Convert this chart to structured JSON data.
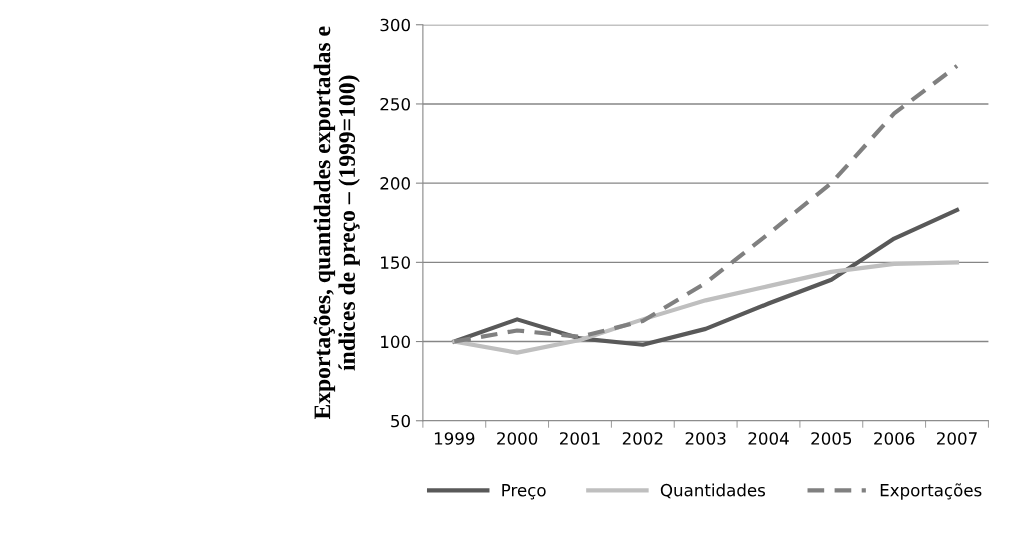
{
  "chart_data": {
    "type": "line",
    "ylabel": "Exportações, quantidades exportadas e\níndices de preço – (1999=100)",
    "categories": [
      "1999",
      "2000",
      "2001",
      "2002",
      "2003",
      "2004",
      "2005",
      "2006",
      "2007"
    ],
    "series": [
      {
        "name": "Preço",
        "color": "#595959",
        "line_style": "solid",
        "values": [
          100,
          114,
          102,
          98,
          108,
          124,
          139,
          165,
          183
        ]
      },
      {
        "name": "Quantidades",
        "color": "#bfbfbf",
        "line_style": "solid",
        "values": [
          100,
          93,
          101,
          114,
          126,
          135,
          144,
          149,
          150
        ]
      },
      {
        "name": "Exportações",
        "color": "#808080",
        "line_style": "dashed",
        "values": [
          100,
          107,
          103,
          113,
          137,
          168,
          200,
          244,
          274
        ]
      }
    ],
    "ylim": [
      50,
      300
    ],
    "yticks": [
      50,
      100,
      150,
      200,
      250,
      300
    ],
    "grid": "y",
    "legend": "bottom"
  }
}
